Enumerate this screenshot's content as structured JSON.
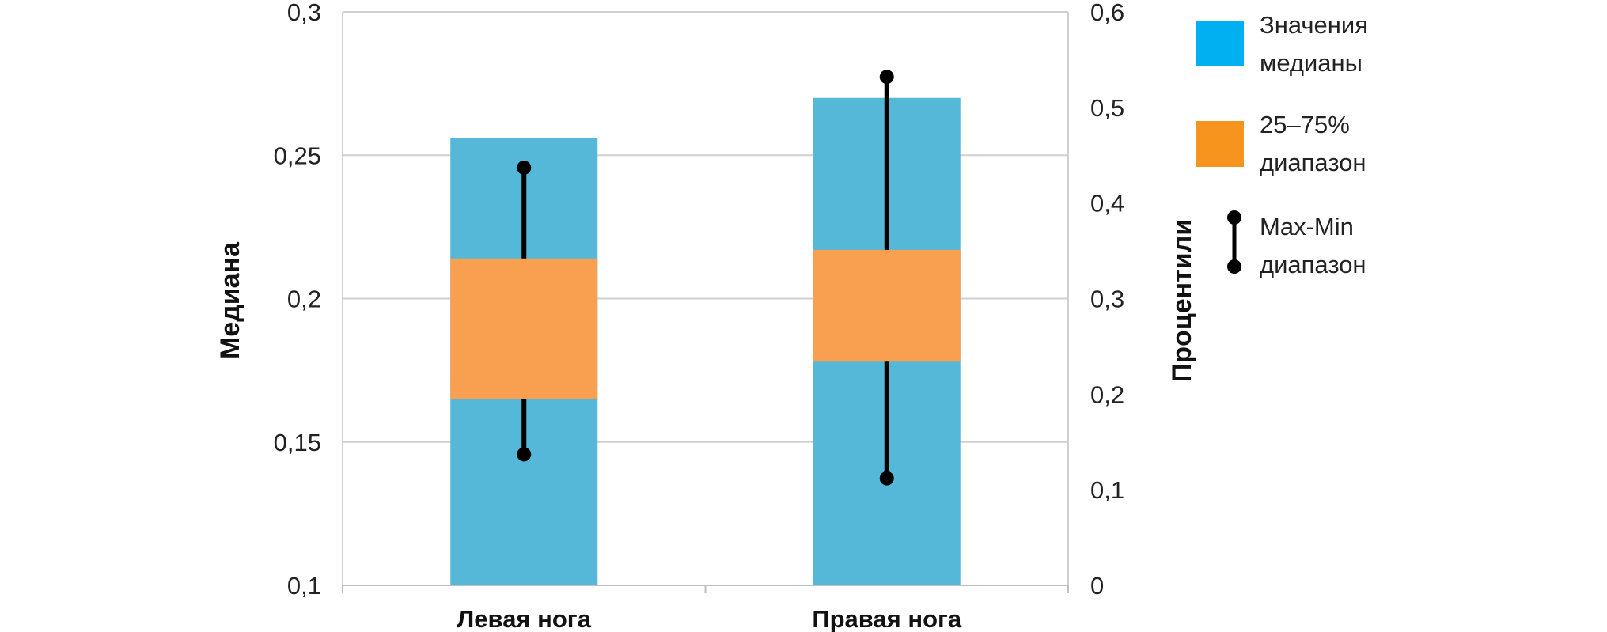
{
  "chart_data": {
    "type": "bar",
    "categories": [
      "Левая нога",
      "Правая нога"
    ],
    "ylabel": "Медиана",
    "y2label": "Процентили",
    "ylim": [
      0.1,
      0.3
    ],
    "y2lim": [
      0,
      0.6
    ],
    "yticks": [
      "0,1",
      "0,15",
      "0,2",
      "0,25",
      "0,3"
    ],
    "yticks_values": [
      0.1,
      0.15,
      0.2,
      0.25,
      0.3
    ],
    "y2ticks": [
      "0",
      "0,1",
      "0,2",
      "0,3",
      "0,4",
      "0,5",
      "0,6"
    ],
    "y2ticks_values": [
      0,
      0.1,
      0.2,
      0.3,
      0.4,
      0.5,
      0.6
    ],
    "grid": true,
    "series": [
      {
        "name": "Значения медианы",
        "axis": "left",
        "values": [
          0.256,
          0.27
        ]
      },
      {
        "name": "25–75% диапазон",
        "axis": "left",
        "low": [
          0.165,
          0.178
        ],
        "high": [
          0.214,
          0.217
        ]
      },
      {
        "name": "Max-Min диапазон",
        "axis": "right",
        "min": [
          0.137,
          0.112
        ],
        "max": [
          0.437,
          0.532
        ]
      }
    ],
    "legend": {
      "position": "right",
      "items": [
        {
          "line1": "Значения",
          "line2": "медианы",
          "kind": "swatch",
          "color": "#00b0f0"
        },
        {
          "line1": "25–75%",
          "line2": "диапазон",
          "kind": "swatch",
          "color": "#f7941d"
        },
        {
          "line1": "Max-Min",
          "line2": "диапазон",
          "kind": "whisker",
          "color": "#000000"
        }
      ]
    },
    "colors": {
      "median_bar": "#55b8d8",
      "iqr_box": "#f8a050",
      "whisker": "#000000",
      "grid": "#d0d0d0"
    }
  }
}
